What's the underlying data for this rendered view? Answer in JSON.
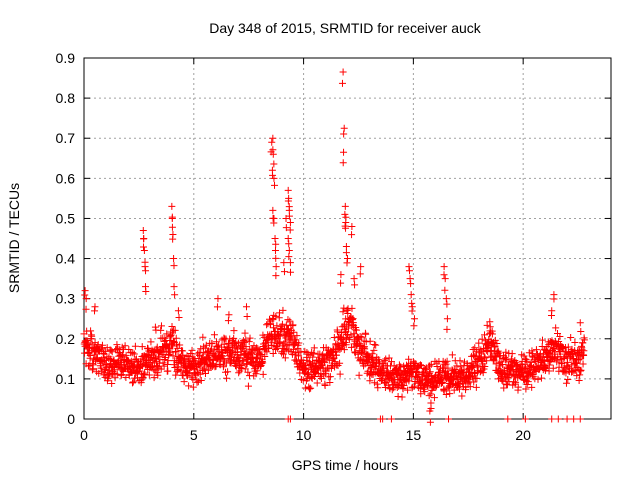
{
  "chart_data": {
    "type": "scatter",
    "title": "Day 348 of 2015, SRMTID for receiver auck",
    "xlabel": "GPS time / hours",
    "ylabel": "SRMTID / TECUs",
    "xlim": [
      0,
      24
    ],
    "ylim": [
      0,
      0.9
    ],
    "xticks": [
      "0",
      "5",
      "10",
      "15",
      "20"
    ],
    "xtick_values": [
      0,
      5,
      10,
      15,
      20
    ],
    "yticks": [
      "0",
      "0.1",
      "0.2",
      "0.3",
      "0.4",
      "0.5",
      "0.6",
      "0.7",
      "0.8",
      "0.9"
    ],
    "ytick_values": [
      0,
      0.1,
      0.2,
      0.3,
      0.4,
      0.5,
      0.6,
      0.7,
      0.8,
      0.9
    ],
    "grid": true,
    "marker": "+",
    "color": "#ff0000",
    "series": [
      {
        "name": "SRMTID",
        "baseline": [
          [
            0.0,
            0.2
          ],
          [
            0.5,
            0.16
          ],
          [
            1.0,
            0.13
          ],
          [
            1.5,
            0.14
          ],
          [
            2.0,
            0.13
          ],
          [
            2.5,
            0.13
          ],
          [
            3.0,
            0.15
          ],
          [
            3.5,
            0.17
          ],
          [
            4.0,
            0.18
          ],
          [
            4.5,
            0.14
          ],
          [
            5.0,
            0.13
          ],
          [
            5.5,
            0.14
          ],
          [
            6.0,
            0.16
          ],
          [
            6.5,
            0.17
          ],
          [
            7.0,
            0.16
          ],
          [
            7.5,
            0.15
          ],
          [
            8.0,
            0.14
          ],
          [
            8.5,
            0.22
          ],
          [
            9.0,
            0.2
          ],
          [
            9.5,
            0.2
          ],
          [
            10.0,
            0.12
          ],
          [
            10.5,
            0.13
          ],
          [
            11.0,
            0.14
          ],
          [
            11.5,
            0.16
          ],
          [
            12.0,
            0.24
          ],
          [
            12.5,
            0.18
          ],
          [
            13.0,
            0.15
          ],
          [
            13.5,
            0.12
          ],
          [
            14.0,
            0.11
          ],
          [
            14.5,
            0.1
          ],
          [
            15.0,
            0.12
          ],
          [
            15.5,
            0.1
          ],
          [
            16.0,
            0.1
          ],
          [
            16.5,
            0.11
          ],
          [
            17.0,
            0.1
          ],
          [
            17.5,
            0.11
          ],
          [
            18.0,
            0.14
          ],
          [
            18.5,
            0.19
          ],
          [
            19.0,
            0.12
          ],
          [
            19.5,
            0.12
          ],
          [
            20.0,
            0.11
          ],
          [
            20.5,
            0.13
          ],
          [
            21.0,
            0.15
          ],
          [
            21.5,
            0.18
          ],
          [
            22.0,
            0.15
          ],
          [
            22.5,
            0.14
          ],
          [
            22.8,
            0.17
          ]
        ],
        "spikes": [
          [
            0.05,
            0.32
          ],
          [
            0.1,
            0.3
          ],
          [
            0.5,
            0.28
          ],
          [
            2.7,
            0.47
          ],
          [
            2.72,
            0.45
          ],
          [
            2.75,
            0.42
          ],
          [
            2.78,
            0.38
          ],
          [
            2.8,
            0.33
          ],
          [
            4.0,
            0.53
          ],
          [
            4.02,
            0.5
          ],
          [
            4.05,
            0.46
          ],
          [
            4.08,
            0.4
          ],
          [
            4.1,
            0.33
          ],
          [
            4.3,
            0.27
          ],
          [
            6.1,
            0.3
          ],
          [
            6.6,
            0.26
          ],
          [
            7.4,
            0.28
          ],
          [
            8.55,
            0.69
          ],
          [
            8.6,
            0.7
          ],
          [
            8.62,
            0.66
          ],
          [
            8.58,
            0.62
          ],
          [
            8.65,
            0.6
          ],
          [
            8.6,
            0.52
          ],
          [
            8.65,
            0.5
          ],
          [
            8.7,
            0.45
          ],
          [
            8.72,
            0.42
          ],
          [
            8.75,
            0.38
          ],
          [
            9.2,
            0.5
          ],
          [
            9.3,
            0.57
          ],
          [
            9.32,
            0.55
          ],
          [
            9.35,
            0.52
          ],
          [
            9.4,
            0.49
          ],
          [
            9.3,
            0.45
          ],
          [
            9.35,
            0.42
          ],
          [
            9.4,
            0.39
          ],
          [
            9.1,
            0.39
          ],
          [
            11.8,
            0.865
          ],
          [
            11.85,
            0.725
          ],
          [
            11.82,
            0.665
          ],
          [
            11.9,
            0.53
          ],
          [
            11.88,
            0.51
          ],
          [
            11.92,
            0.49
          ],
          [
            12.2,
            0.48
          ],
          [
            11.95,
            0.43
          ],
          [
            12.0,
            0.4
          ],
          [
            11.7,
            0.36
          ],
          [
            12.3,
            0.35
          ],
          [
            12.6,
            0.38
          ],
          [
            14.8,
            0.38
          ],
          [
            14.85,
            0.35
          ],
          [
            14.9,
            0.31
          ],
          [
            14.95,
            0.28
          ],
          [
            15.05,
            0.25
          ],
          [
            15.8,
            0.04
          ],
          [
            15.75,
            0.02
          ],
          [
            16.4,
            0.38
          ],
          [
            16.45,
            0.35
          ],
          [
            16.5,
            0.3
          ],
          [
            16.55,
            0.25
          ],
          [
            18.5,
            0.23
          ],
          [
            21.4,
            0.31
          ],
          [
            21.3,
            0.27
          ],
          [
            22.6,
            0.24
          ]
        ],
        "zeros": [
          9.3,
          9.4,
          13.5,
          13.6,
          14.0,
          16.6,
          19.3,
          20.1,
          21.3,
          21.6,
          22.0,
          22.3,
          22.6
        ]
      }
    ]
  }
}
